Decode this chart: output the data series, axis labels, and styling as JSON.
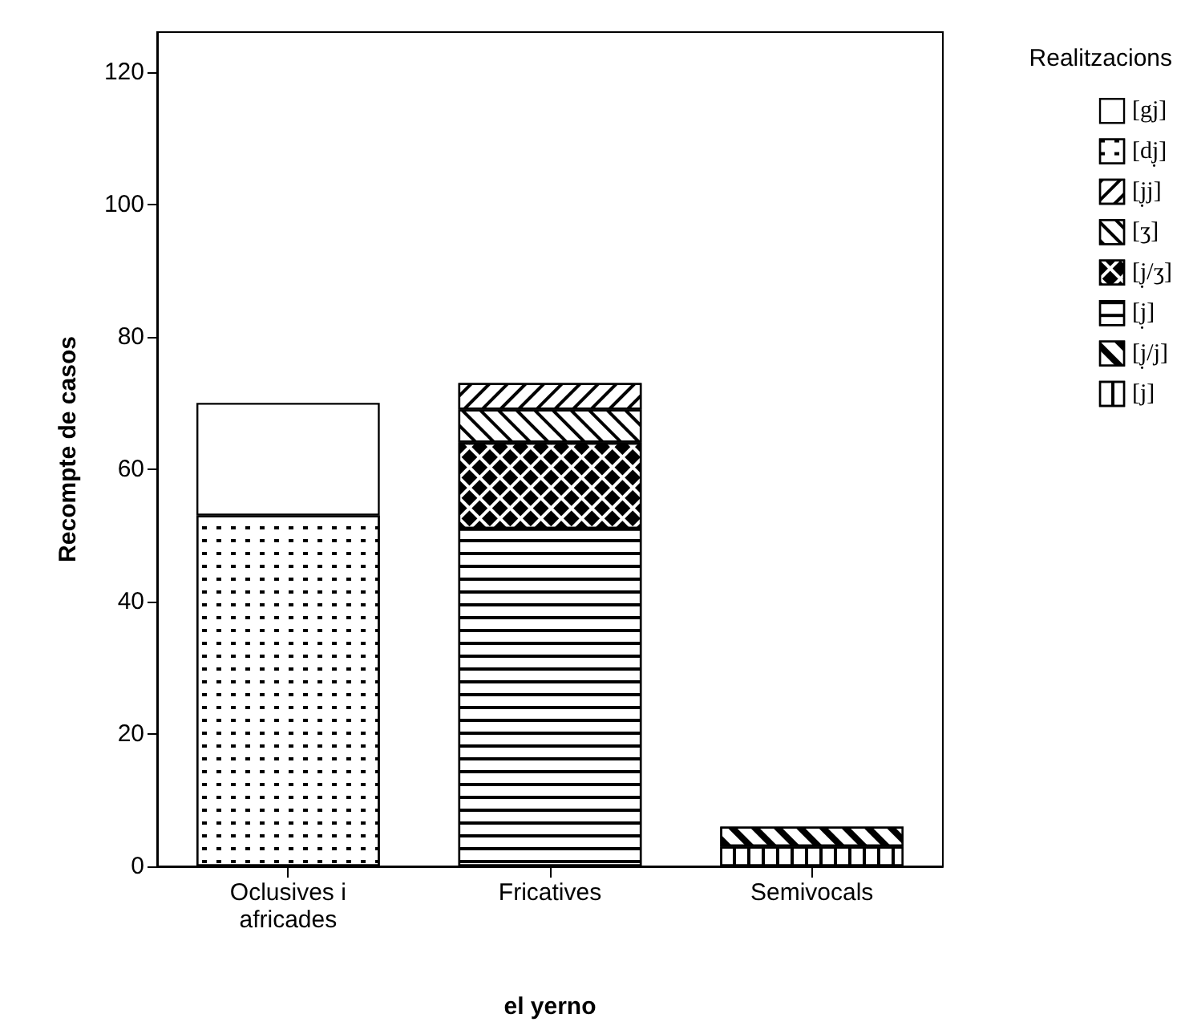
{
  "chart_data": {
    "type": "bar",
    "stacked": true,
    "xlabel": "el yerno",
    "ylabel": "Recompte de casos",
    "legend_title": "Realitzacions",
    "legend": "top right",
    "grid": false,
    "categories": [
      "Oclusives i\nafricades",
      "Fricatives",
      "Semivocals"
    ],
    "ylim": [
      0,
      126
    ],
    "yticks": [
      0,
      20,
      40,
      60,
      80,
      100,
      120
    ],
    "series": [
      {
        "name": "[j]",
        "color": "#ffffff",
        "values": [
          null,
          null,
          3
        ]
      },
      {
        "name": "[j̣/j]",
        "color": "#ffffff",
        "values": [
          null,
          null,
          3
        ]
      },
      {
        "name": "[j̣]",
        "color": "#ffffff",
        "values": [
          null,
          51,
          null
        ]
      },
      {
        "name": "[j̣/ʒ]",
        "color": "#ffffff",
        "values": [
          null,
          13,
          null
        ]
      },
      {
        "name": "[ʒ]",
        "color": "#ffffff",
        "values": [
          null,
          5,
          null
        ]
      },
      {
        "name": "[j̣j]",
        "color": "#ffffff",
        "values": [
          null,
          4,
          null
        ]
      },
      {
        "name": "[dj̣]",
        "color": "#ffffff",
        "values": [
          53,
          null,
          null
        ]
      },
      {
        "name": "[gj]",
        "color": "#ffffff",
        "values": [
          17,
          null,
          null
        ]
      }
    ]
  }
}
